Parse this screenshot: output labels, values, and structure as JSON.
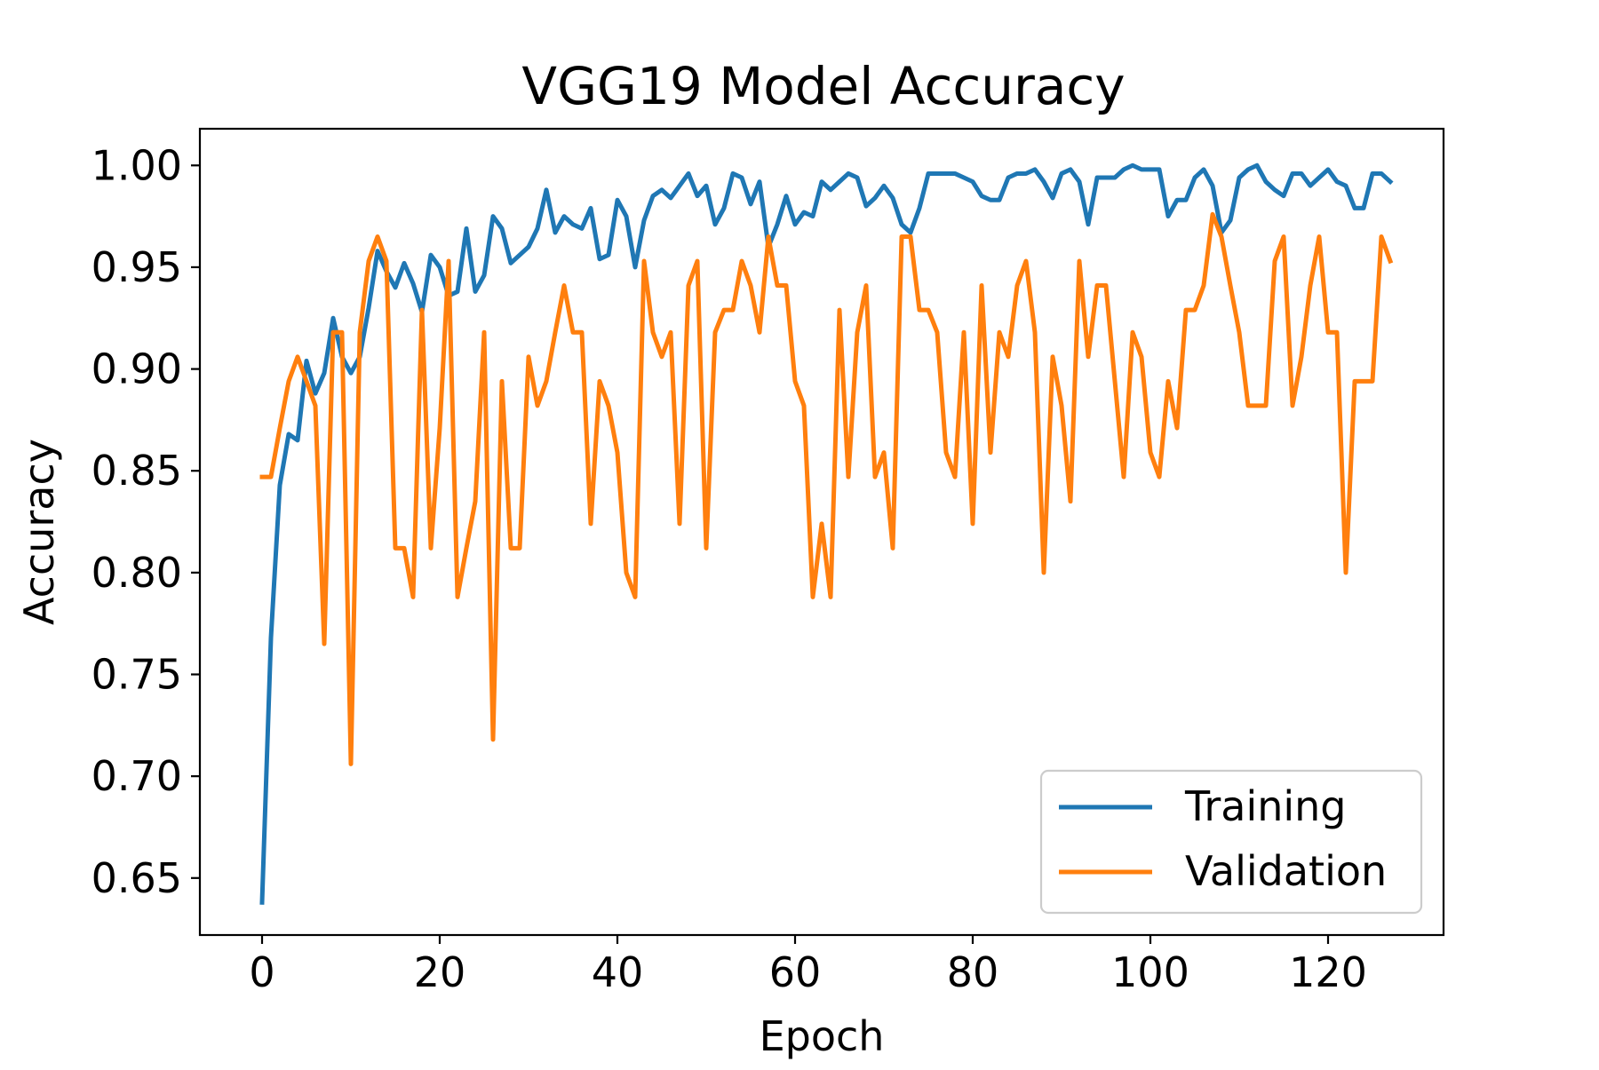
{
  "chart_data": {
    "type": "line",
    "title": "VGG19 Model Accuracy",
    "xlabel": "Epoch",
    "ylabel": "Accuracy",
    "xlim": [
      -7,
      133
    ],
    "ylim": [
      0.622,
      1.018
    ],
    "xticks": [
      0,
      20,
      40,
      60,
      80,
      100,
      120
    ],
    "xtick_labels": [
      "0",
      "20",
      "40",
      "60",
      "80",
      "100",
      "120"
    ],
    "yticks": [
      0.65,
      0.7,
      0.75,
      0.8,
      0.85,
      0.9,
      0.95,
      1.0
    ],
    "ytick_labels": [
      "0.65",
      "0.70",
      "0.75",
      "0.80",
      "0.85",
      "0.90",
      "0.95",
      "1.00"
    ],
    "grid": false,
    "legend_position": "lower-right",
    "series": [
      {
        "name": "Training",
        "color": "#1f77b4",
        "values": [
          0.638,
          0.768,
          0.843,
          0.868,
          0.865,
          0.904,
          0.888,
          0.898,
          0.925,
          0.906,
          0.898,
          0.906,
          0.93,
          0.958,
          0.948,
          0.94,
          0.952,
          0.942,
          0.928,
          0.956,
          0.95,
          0.936,
          0.938,
          0.969,
          0.938,
          0.946,
          0.975,
          0.969,
          0.952,
          0.956,
          0.96,
          0.969,
          0.988,
          0.967,
          0.975,
          0.971,
          0.969,
          0.979,
          0.954,
          0.956,
          0.983,
          0.975,
          0.95,
          0.973,
          0.985,
          0.988,
          0.984,
          0.99,
          0.996,
          0.985,
          0.99,
          0.971,
          0.979,
          0.996,
          0.994,
          0.981,
          0.992,
          0.96,
          0.971,
          0.985,
          0.971,
          0.977,
          0.975,
          0.992,
          0.988,
          0.992,
          0.996,
          0.994,
          0.98,
          0.984,
          0.99,
          0.984,
          0.971,
          0.967,
          0.979,
          0.996,
          0.996,
          0.996,
          0.996,
          0.994,
          0.992,
          0.985,
          0.983,
          0.983,
          0.994,
          0.996,
          0.996,
          0.998,
          0.992,
          0.984,
          0.996,
          0.998,
          0.992,
          0.971,
          0.994,
          0.994,
          0.994,
          0.998,
          1.0,
          0.998,
          0.998,
          0.998,
          0.975,
          0.983,
          0.983,
          0.994,
          0.998,
          0.99,
          0.967,
          0.973,
          0.994,
          0.998,
          1.0,
          0.992,
          0.988,
          0.985,
          0.996,
          0.996,
          0.99,
          0.994,
          0.998,
          0.992,
          0.99,
          0.979,
          0.979,
          0.996,
          0.996,
          0.992
        ]
      },
      {
        "name": "Validation",
        "color": "#ff7f0e",
        "values": [
          0.847,
          0.847,
          0.871,
          0.894,
          0.906,
          0.894,
          0.882,
          0.765,
          0.918,
          0.918,
          0.706,
          0.918,
          0.953,
          0.965,
          0.953,
          0.812,
          0.812,
          0.788,
          0.929,
          0.812,
          0.871,
          0.953,
          0.788,
          0.812,
          0.835,
          0.918,
          0.718,
          0.894,
          0.812,
          0.812,
          0.906,
          0.882,
          0.894,
          0.918,
          0.941,
          0.918,
          0.918,
          0.824,
          0.894,
          0.882,
          0.859,
          0.8,
          0.788,
          0.953,
          0.918,
          0.906,
          0.918,
          0.824,
          0.941,
          0.953,
          0.812,
          0.918,
          0.929,
          0.929,
          0.953,
          0.941,
          0.918,
          0.965,
          0.941,
          0.941,
          0.894,
          0.882,
          0.788,
          0.824,
          0.788,
          0.929,
          0.847,
          0.918,
          0.941,
          0.847,
          0.859,
          0.812,
          0.965,
          0.965,
          0.929,
          0.929,
          0.918,
          0.859,
          0.847,
          0.918,
          0.824,
          0.941,
          0.859,
          0.918,
          0.906,
          0.941,
          0.953,
          0.918,
          0.8,
          0.906,
          0.882,
          0.835,
          0.953,
          0.906,
          0.941,
          0.941,
          0.894,
          0.847,
          0.918,
          0.906,
          0.859,
          0.847,
          0.894,
          0.871,
          0.929,
          0.929,
          0.941,
          0.976,
          0.965,
          0.941,
          0.918,
          0.882,
          0.882,
          0.882,
          0.953,
          0.965,
          0.882,
          0.906,
          0.941,
          0.965,
          0.918,
          0.918,
          0.8,
          0.894,
          0.894,
          0.894,
          0.965,
          0.953
        ]
      }
    ]
  }
}
